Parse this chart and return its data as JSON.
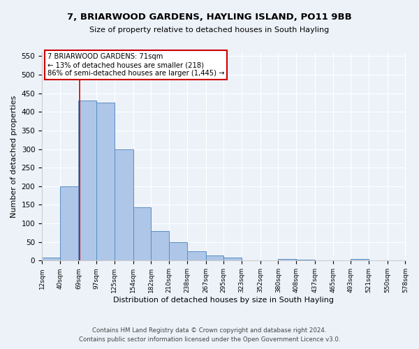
{
  "title": "7, BRIARWOOD GARDENS, HAYLING ISLAND, PO11 9BB",
  "subtitle": "Size of property relative to detached houses in South Hayling",
  "xlabel": "Distribution of detached houses by size in South Hayling",
  "ylabel": "Number of detached properties",
  "bin_edges": [
    12,
    40,
    69,
    97,
    125,
    154,
    182,
    210,
    238,
    267,
    295,
    323,
    352,
    380,
    408,
    437,
    465,
    493,
    521,
    550,
    578
  ],
  "bin_counts": [
    8,
    200,
    430,
    425,
    300,
    143,
    80,
    50,
    25,
    13,
    8,
    0,
    0,
    5,
    2,
    0,
    0,
    5,
    0,
    0
  ],
  "property_value": 71,
  "bar_color": "#aec6e8",
  "bar_edge_color": "#5a8fc2",
  "vline_color": "#cc0000",
  "annotation_box_edge_color": "#cc0000",
  "annotation_line1": "7 BRIARWOOD GARDENS: 71sqm",
  "annotation_line2": "← 13% of detached houses are smaller (218)",
  "annotation_line3": "86% of semi-detached houses are larger (1,445) →",
  "ylim": [
    0,
    560
  ],
  "yticks": [
    0,
    50,
    100,
    150,
    200,
    250,
    300,
    350,
    400,
    450,
    500,
    550
  ],
  "tick_labels": [
    "12sqm",
    "40sqm",
    "69sqm",
    "97sqm",
    "125sqm",
    "154sqm",
    "182sqm",
    "210sqm",
    "238sqm",
    "267sqm",
    "295sqm",
    "323sqm",
    "352sqm",
    "380sqm",
    "408sqm",
    "437sqm",
    "465sqm",
    "493sqm",
    "521sqm",
    "550sqm",
    "578sqm"
  ],
  "footer_line1": "Contains HM Land Registry data © Crown copyright and database right 2024.",
  "footer_line2": "Contains public sector information licensed under the Open Government Licence v3.0.",
  "bg_color": "#edf2f9",
  "plot_bg_color": "#edf2f9"
}
